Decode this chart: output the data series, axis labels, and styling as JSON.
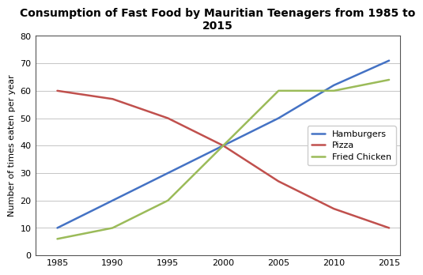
{
  "title": "Consumption of Fast Food by Mauritian Teenagers from 1985 to\n2015",
  "xlabel": "",
  "ylabel": "Number of times eaten per year",
  "years": [
    1985,
    1990,
    1995,
    2000,
    2005,
    2010,
    2015
  ],
  "hamburgers": [
    10,
    20,
    30,
    40,
    50,
    62,
    71
  ],
  "pizza": [
    60,
    57,
    50,
    40,
    27,
    17,
    10
  ],
  "fried_chicken": [
    6,
    10,
    20,
    40,
    60,
    60,
    64
  ],
  "hamburgers_color": "#4472C4",
  "pizza_color": "#C0504D",
  "fried_chicken_color": "#9BBB59",
  "ylim": [
    0,
    80
  ],
  "xlim": [
    1983,
    2016
  ],
  "yticks": [
    0,
    10,
    20,
    30,
    40,
    50,
    60,
    70,
    80
  ],
  "xticks": [
    1985,
    1990,
    1995,
    2000,
    2005,
    2010,
    2015
  ],
  "legend_labels": [
    "Hamburgers",
    "Pizza",
    "Fried Chicken"
  ],
  "line_width": 1.8,
  "title_fontsize": 10,
  "axis_label_fontsize": 8,
  "tick_fontsize": 8,
  "legend_fontsize": 8,
  "background_color": "#FFFFFF",
  "grid_color": "#BBBBBB",
  "grid_linestyle": "-",
  "grid_linewidth": 0.6
}
